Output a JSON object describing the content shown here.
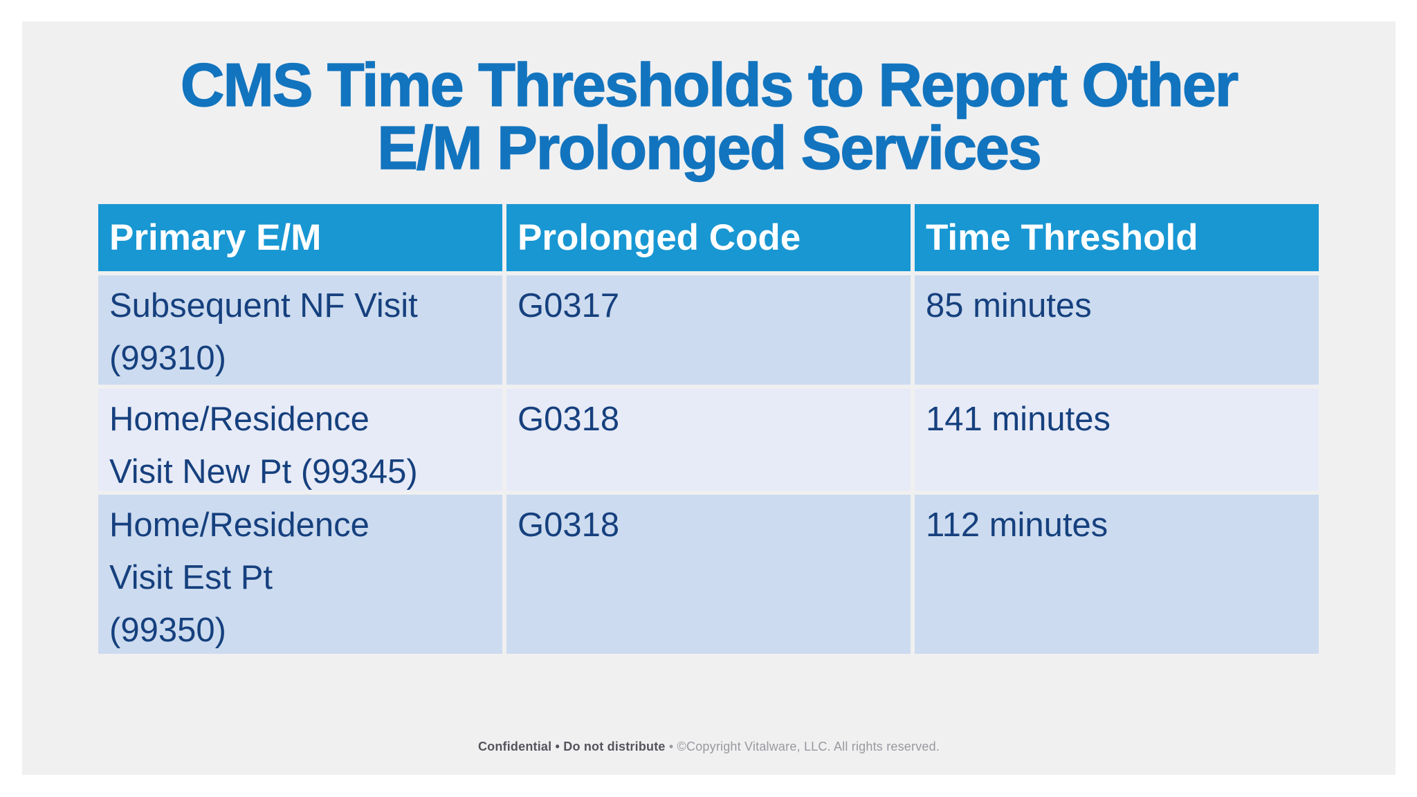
{
  "slide": {
    "title_line1": "CMS Time Thresholds to Report Other",
    "title_line2": "E/M Prolonged Services"
  },
  "table": {
    "columns": [
      "Primary E/M",
      "Prolonged Code",
      "Time Threshold"
    ],
    "rows": [
      {
        "primary_em": "Subsequent NF Visit\n(99310)",
        "prolonged_code": "G0317",
        "time_threshold": "85 minutes"
      },
      {
        "primary_em": "Home/Residence\nVisit New Pt (99345)",
        "prolonged_code": "G0318",
        "time_threshold": "141 minutes"
      },
      {
        "primary_em": "Home/Residence\nVisit Est Pt\n(99350)",
        "prolonged_code": "G0318",
        "time_threshold": "112 minutes"
      }
    ]
  },
  "footer": {
    "confidential_label": "Confidential • Do not distribute",
    "copyright_label": " • ©Copyright Vitalware, LLC. All rights reserved."
  },
  "colors": {
    "title_blue": "#1274be",
    "header_blue": "#1897d3",
    "row_odd_bg": "#ccdbef",
    "row_even_bg": "#e7ebf7",
    "body_text_blue": "#16407e",
    "slide_bg": "#f0f0f1",
    "page_bg": "#ffffff",
    "footer_dark": "#54545c",
    "footer_light": "#98989f"
  }
}
